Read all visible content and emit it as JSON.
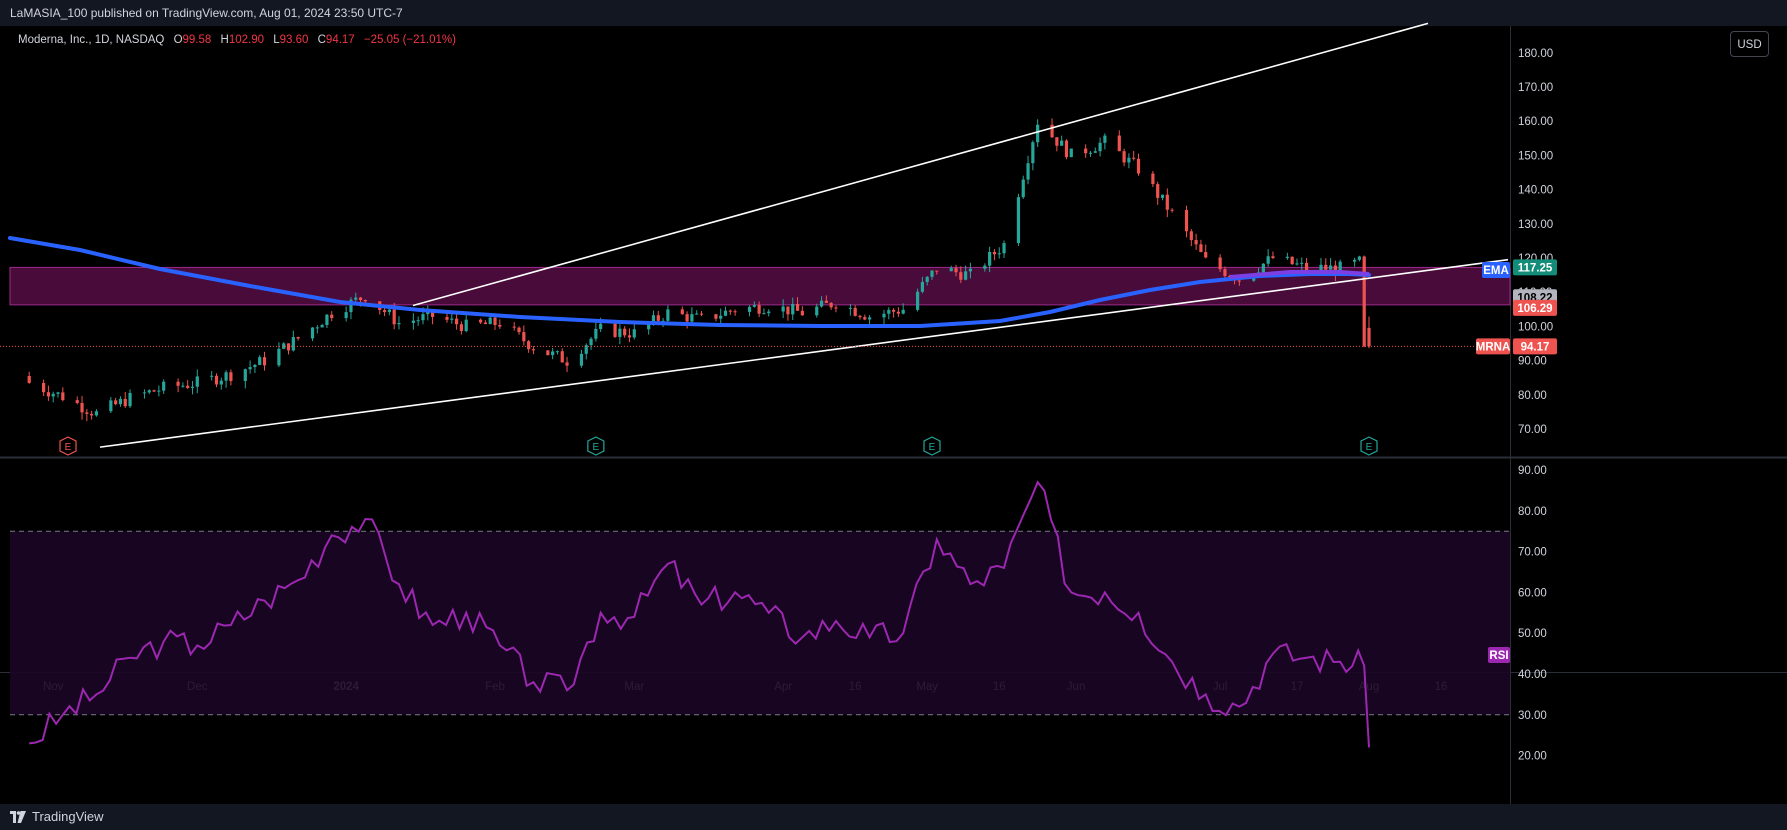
{
  "header": {
    "publisher_line": "LaMASIA_100 published on TradingView.com, Aug 01, 2024 23:50 UTC-7"
  },
  "legend": {
    "symbol_desc": "Moderna, Inc., 1D, NASDAQ",
    "o_label": "O",
    "o_val": "99.58",
    "h_label": "H",
    "h_val": "102.90",
    "l_label": "L",
    "l_val": "93.60",
    "c_label": "C",
    "c_val": "94.17",
    "change": "−25.05 (−21.01%)"
  },
  "currency_button": "USD",
  "price_tags": {
    "ema_label": "EMA",
    "zone_top": "117.25",
    "ema_value": "108.22",
    "zone_bottom": "106.29",
    "symbol_label": "MRNA",
    "last_price": "94.17",
    "rsi_label": "RSI"
  },
  "footer": {
    "brand": "TradingView"
  },
  "colors": {
    "up": "#26a69a",
    "down": "#ef5350",
    "ema": "#2962ff",
    "rsi": "#9c27b0",
    "zone": "#5a0e48",
    "trendline": "#ffffff"
  },
  "chart_data": [
    {
      "type": "line",
      "series_type": "candlestick",
      "symbol": "MRNA",
      "price_axis_ticks": [
        "180.00",
        "170.00",
        "160.00",
        "150.00",
        "140.00",
        "130.00",
        "120.00",
        "110.00",
        "100.00",
        "90.00",
        "80.00",
        "70.00"
      ],
      "time_axis_ticks": [
        "Nov",
        "Dec",
        "2024",
        "Feb",
        "Mar",
        "Apr",
        "16",
        "May",
        "16",
        "Jun",
        "Jul",
        "17",
        "Aug",
        "16"
      ],
      "resistance_zone": [
        106.29,
        117.25
      ],
      "ema_last": 108.22,
      "last_close": 94.17,
      "earnings_markers": 4,
      "close_series": [
        [
          "2023-10-27",
          83.5
        ],
        [
          "2023-11-03",
          79.5
        ],
        [
          "2023-11-10",
          74.5
        ],
        [
          "2023-11-17",
          79.0
        ],
        [
          "2023-11-24",
          82.0
        ],
        [
          "2023-12-01",
          83.5
        ],
        [
          "2023-12-08",
          86.0
        ],
        [
          "2023-12-15",
          90.0
        ],
        [
          "2023-12-22",
          96.5
        ],
        [
          "2023-12-29",
          104.0
        ],
        [
          "2024-01-05",
          109.0
        ],
        [
          "2024-01-12",
          101.0
        ],
        [
          "2024-01-19",
          103.0
        ],
        [
          "2024-01-26",
          100.0
        ],
        [
          "2024-02-02",
          101.0
        ],
        [
          "2024-02-09",
          94.0
        ],
        [
          "2024-02-16",
          90.0
        ],
        [
          "2024-02-23",
          99.0
        ],
        [
          "2024-03-01",
          98.0
        ],
        [
          "2024-03-08",
          104.0
        ],
        [
          "2024-03-15",
          102.0
        ],
        [
          "2024-03-22",
          105.0
        ],
        [
          "2024-03-29",
          106.0
        ],
        [
          "2024-04-05",
          104.0
        ],
        [
          "2024-04-12",
          107.0
        ],
        [
          "2024-04-19",
          103.0
        ],
        [
          "2024-04-26",
          105.0
        ],
        [
          "2024-05-03",
          117.0
        ],
        [
          "2024-05-10",
          115.0
        ],
        [
          "2024-05-17",
          124.0
        ],
        [
          "2024-05-24",
          160.0
        ],
        [
          "2024-05-31",
          150.0
        ],
        [
          "2024-06-07",
          154.0
        ],
        [
          "2024-06-14",
          146.0
        ],
        [
          "2024-06-21",
          133.0
        ],
        [
          "2024-06-28",
          119.0
        ],
        [
          "2024-07-05",
          114.0
        ],
        [
          "2024-07-12",
          120.0
        ],
        [
          "2024-07-19",
          117.0
        ],
        [
          "2024-07-26",
          117.0
        ],
        [
          "2024-07-31",
          119.2
        ],
        [
          "2024-08-01",
          94.17
        ]
      ]
    },
    {
      "type": "line",
      "series_name": "RSI",
      "y_axis_ticks": [
        "90.00",
        "80.00",
        "70.00",
        "60.00",
        "50.00",
        "40.00",
        "30.00",
        "20.00"
      ],
      "overbought": 75,
      "oversold": 30,
      "values": [
        [
          "2023-10-27",
          23
        ],
        [
          "2023-11-03",
          30
        ],
        [
          "2023-11-10",
          35
        ],
        [
          "2023-11-17",
          44
        ],
        [
          "2023-11-24",
          48
        ],
        [
          "2023-12-01",
          47
        ],
        [
          "2023-12-08",
          52
        ],
        [
          "2023-12-15",
          58
        ],
        [
          "2023-12-22",
          63
        ],
        [
          "2023-12-29",
          74
        ],
        [
          "2024-01-05",
          78
        ],
        [
          "2024-01-12",
          62
        ],
        [
          "2024-01-19",
          52
        ],
        [
          "2024-01-26",
          55
        ],
        [
          "2024-02-02",
          47
        ],
        [
          "2024-02-09",
          38
        ],
        [
          "2024-02-16",
          36
        ],
        [
          "2024-02-23",
          55
        ],
        [
          "2024-03-01",
          54
        ],
        [
          "2024-03-08",
          67
        ],
        [
          "2024-03-15",
          57
        ],
        [
          "2024-03-22",
          60
        ],
        [
          "2024-03-29",
          55
        ],
        [
          "2024-04-05",
          49
        ],
        [
          "2024-04-12",
          53
        ],
        [
          "2024-04-19",
          49
        ],
        [
          "2024-04-26",
          50
        ],
        [
          "2024-05-03",
          73
        ],
        [
          "2024-05-10",
          62
        ],
        [
          "2024-05-17",
          66
        ],
        [
          "2024-05-24",
          87
        ],
        [
          "2024-05-31",
          60
        ],
        [
          "2024-06-07",
          60
        ],
        [
          "2024-06-14",
          55
        ],
        [
          "2024-06-21",
          43
        ],
        [
          "2024-06-28",
          35
        ],
        [
          "2024-07-05",
          32
        ],
        [
          "2024-07-12",
          45
        ],
        [
          "2024-07-19",
          44
        ],
        [
          "2024-07-26",
          43
        ],
        [
          "2024-07-31",
          42
        ],
        [
          "2024-08-01",
          22
        ]
      ]
    }
  ]
}
